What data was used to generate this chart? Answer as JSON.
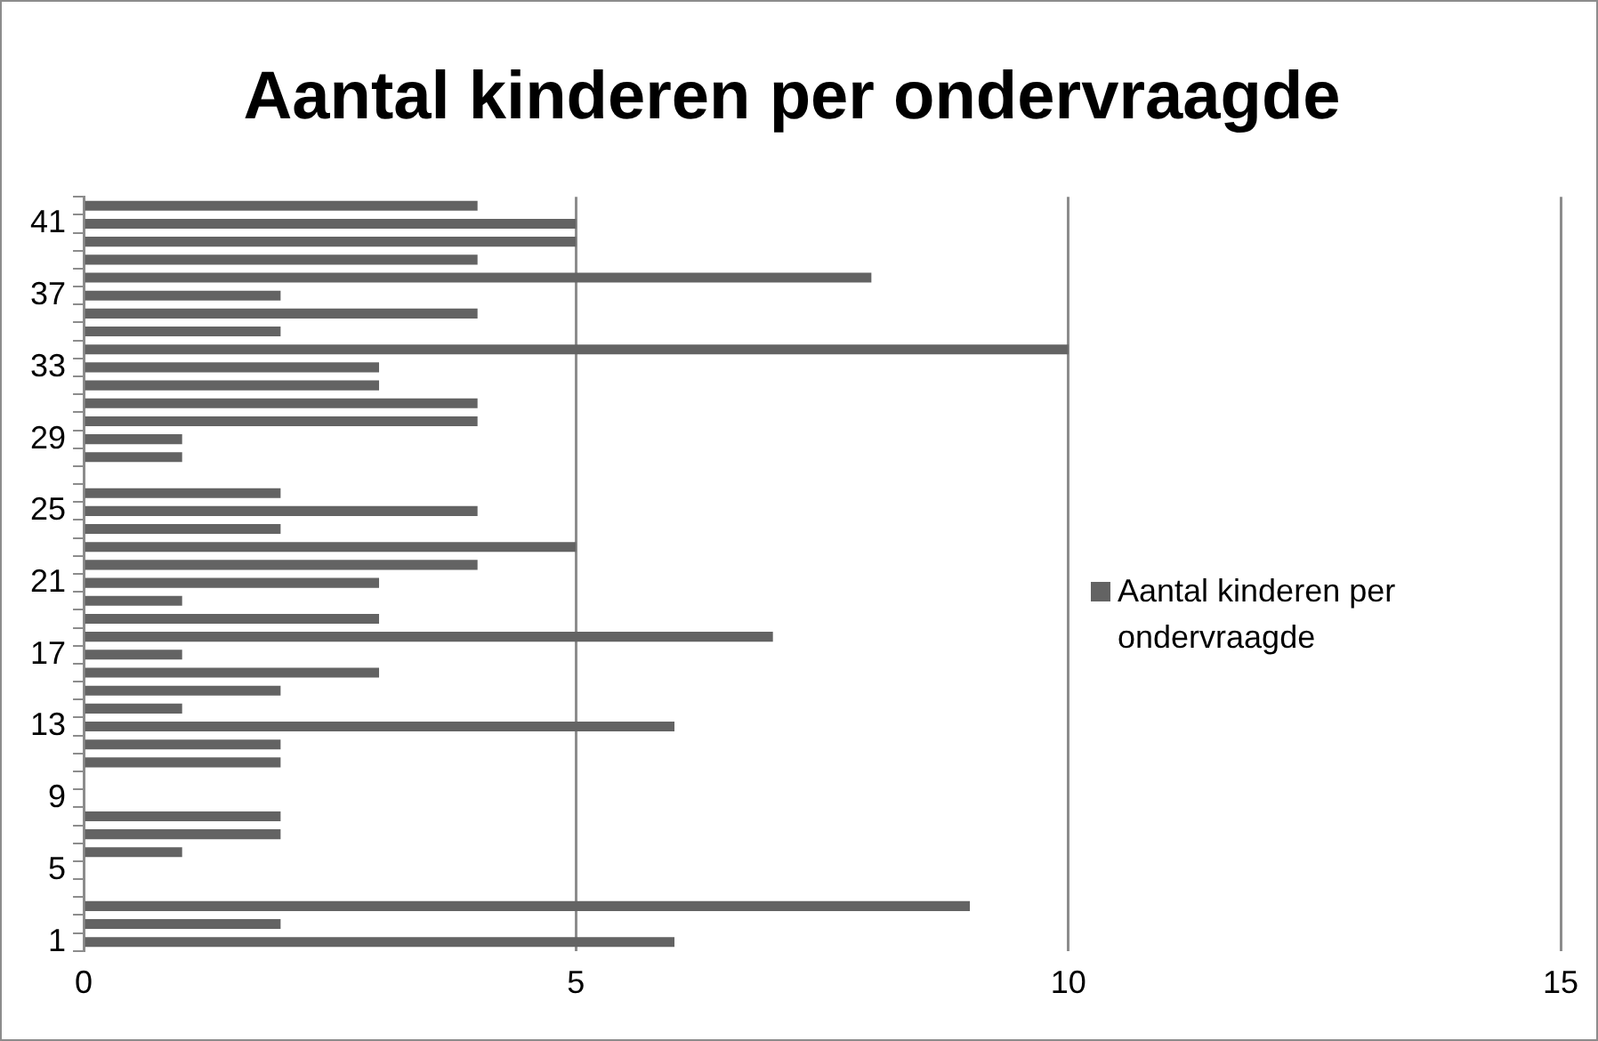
{
  "chart_data": {
    "type": "bar",
    "orientation": "horizontal",
    "title": "Aantal kinderen per ondervraagde",
    "categories": [
      null,
      "41",
      null,
      null,
      null,
      "37",
      null,
      null,
      null,
      "33",
      null,
      null,
      null,
      "29",
      null,
      null,
      null,
      "25",
      null,
      null,
      null,
      "21",
      null,
      null,
      null,
      "17",
      null,
      null,
      null,
      "13",
      null,
      null,
      null,
      "9",
      null,
      null,
      null,
      "5",
      null,
      null,
      null,
      "1"
    ],
    "series": [
      {
        "name": "Aantal kinderen per ondervraagde",
        "color": "#636363",
        "values": [
          4,
          5,
          5,
          4,
          8,
          2,
          4,
          2,
          10,
          3,
          3,
          4,
          4,
          1,
          1,
          0,
          2,
          4,
          2,
          5,
          4,
          3,
          1,
          3,
          7,
          1,
          3,
          2,
          1,
          6,
          2,
          2,
          0,
          0,
          2,
          2,
          1,
          0,
          0,
          9,
          2,
          6
        ]
      }
    ],
    "xlim": [
      0,
      15
    ],
    "xticks": [
      0,
      5,
      10,
      15
    ],
    "grid": "x",
    "legend": "right"
  }
}
